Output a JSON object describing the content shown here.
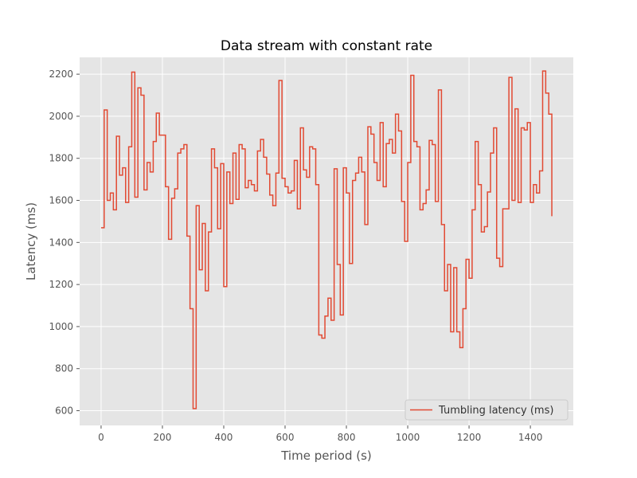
{
  "chart_data": {
    "type": "line",
    "step": "post",
    "title": "Data stream with constant rate",
    "xlabel": "Time period (s)",
    "ylabel": "Latency (ms)",
    "xlim": [
      -70,
      1540
    ],
    "ylim": [
      530,
      2280
    ],
    "xticks": [
      0,
      200,
      400,
      600,
      800,
      1000,
      1200,
      1400
    ],
    "yticks": [
      600,
      800,
      1000,
      1200,
      1400,
      1600,
      1800,
      2000,
      2200
    ],
    "grid": true,
    "legend_position": "lower right",
    "series": [
      {
        "name": "Tumbling latency (ms)",
        "color": "#E24A33",
        "x": [
          0,
          10,
          20,
          30,
          40,
          50,
          60,
          70,
          80,
          90,
          100,
          110,
          120,
          130,
          140,
          150,
          160,
          170,
          180,
          190,
          200,
          210,
          220,
          230,
          240,
          250,
          260,
          270,
          280,
          290,
          300,
          310,
          320,
          330,
          340,
          350,
          360,
          370,
          380,
          390,
          400,
          410,
          420,
          430,
          440,
          450,
          460,
          470,
          480,
          490,
          500,
          510,
          520,
          530,
          540,
          550,
          560,
          570,
          580,
          590,
          600,
          610,
          620,
          630,
          640,
          650,
          660,
          670,
          680,
          690,
          700,
          710,
          720,
          730,
          740,
          750,
          760,
          770,
          780,
          790,
          800,
          810,
          820,
          830,
          840,
          850,
          860,
          870,
          880,
          890,
          900,
          910,
          920,
          930,
          940,
          950,
          960,
          970,
          980,
          990,
          1000,
          1010,
          1020,
          1030,
          1040,
          1050,
          1060,
          1070,
          1080,
          1090,
          1100,
          1110,
          1120,
          1130,
          1140,
          1150,
          1160,
          1170,
          1180,
          1190,
          1200,
          1210,
          1220,
          1230,
          1240,
          1250,
          1260,
          1270,
          1280,
          1290,
          1300,
          1310,
          1320,
          1330,
          1340,
          1350,
          1360,
          1370,
          1380,
          1390,
          1400,
          1410,
          1420,
          1430,
          1440,
          1450,
          1460,
          1470
        ],
        "y": [
          1470,
          2030,
          1600,
          1635,
          1555,
          1905,
          1720,
          1755,
          1590,
          1855,
          2210,
          1615,
          2135,
          2100,
          1650,
          1780,
          1735,
          1880,
          2015,
          1910,
          1910,
          1665,
          1415,
          1610,
          1655,
          1825,
          1845,
          1865,
          1430,
          1085,
          610,
          1575,
          1270,
          1490,
          1170,
          1450,
          1845,
          1755,
          1465,
          1775,
          1190,
          1735,
          1585,
          1825,
          1605,
          1865,
          1845,
          1660,
          1695,
          1675,
          1645,
          1835,
          1890,
          1805,
          1725,
          1625,
          1575,
          1730,
          2170,
          1705,
          1665,
          1635,
          1645,
          1790,
          1560,
          1945,
          1745,
          1710,
          1855,
          1845,
          1675,
          960,
          945,
          1050,
          1135,
          1030,
          1750,
          1295,
          1055,
          1755,
          1635,
          1300,
          1695,
          1730,
          1805,
          1735,
          1485,
          1950,
          1915,
          1780,
          1695,
          1970,
          1665,
          1870,
          1890,
          1825,
          2010,
          1930,
          1595,
          1405,
          1780,
          2195,
          1880,
          1855,
          1555,
          1585,
          1650,
          1885,
          1865,
          1595,
          2125,
          1485,
          1170,
          1295,
          975,
          1280,
          975,
          900,
          1085,
          1320,
          1230,
          1555,
          1880,
          1675,
          1450,
          1475,
          1640,
          1825,
          1945,
          1325,
          1285,
          1560,
          1560,
          2185,
          1600,
          2035,
          1590,
          1945,
          1935,
          1970,
          1590,
          1675,
          1635,
          1740,
          2215,
          2110,
          2010,
          1525
        ]
      }
    ]
  }
}
